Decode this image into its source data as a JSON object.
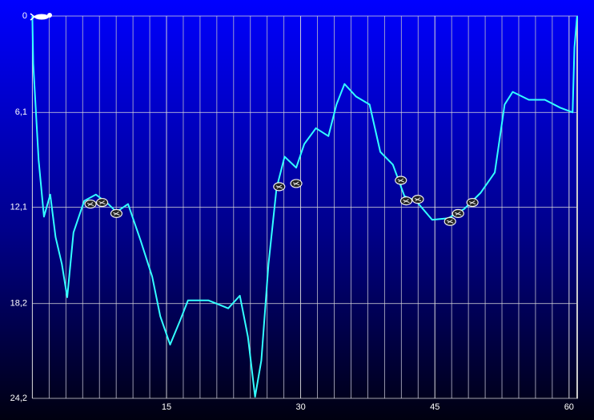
{
  "chart_data": {
    "type": "line",
    "xlim": [
      0,
      61
    ],
    "xticks": [
      15,
      30,
      45,
      60
    ],
    "x_minor_divisions": 8,
    "ylim": [
      0,
      24.2
    ],
    "y_inverted": true,
    "yticks": [
      0,
      {
        "value": 6.1,
        "label": "6,1"
      },
      {
        "value": 12.1,
        "label": "12,1"
      },
      {
        "value": 18.2,
        "label": "18,2"
      },
      {
        "value": 24.2,
        "label": "24,2"
      }
    ],
    "grid": true,
    "series": [
      {
        "color": "#33ffff",
        "x": [
          0,
          0.1,
          0.7,
          1.3,
          2.0,
          2.6,
          3.3,
          3.9,
          4.6,
          5.8,
          7.1,
          8.5,
          9.4,
          10.7,
          12.1,
          13.4,
          14.3,
          15.4,
          16.5,
          17.4,
          19.7,
          21.9,
          23.2,
          24.1,
          24.9,
          25.6,
          26.4,
          27.3,
          28.2,
          29.5,
          30.4,
          31.7,
          33.1,
          34.0,
          34.9,
          36.2,
          37.7,
          38.9,
          40.3,
          41.6,
          42.9,
          44.7,
          46.5,
          48.3,
          50.1,
          51.7,
          52.8,
          53.7,
          55.5,
          57.3,
          59.0,
          60.4,
          60.6,
          60.9
        ],
        "values": [
          0,
          3.0,
          9.1,
          12.7,
          11.3,
          14.0,
          15.7,
          17.8,
          13.7,
          11.7,
          11.3,
          11.9,
          12.4,
          11.9,
          14.2,
          16.5,
          19.0,
          20.8,
          19.3,
          18.0,
          18.0,
          18.5,
          17.7,
          20.3,
          24.1,
          21.8,
          15.7,
          10.9,
          8.9,
          9.6,
          8.1,
          7.1,
          7.6,
          5.6,
          4.3,
          5.1,
          5.6,
          8.6,
          9.4,
          11.4,
          11.7,
          12.9,
          12.8,
          12.2,
          11.2,
          9.9,
          5.6,
          4.8,
          5.3,
          5.3,
          5.8,
          6.1,
          2.0,
          0
        ]
      }
    ],
    "markers": {
      "x": [
        6.5,
        7.8,
        9.4,
        27.6,
        29.5,
        41.2,
        41.8,
        43.1,
        46.7,
        47.6,
        49.2
      ],
      "values": [
        11.9,
        11.8,
        12.5,
        10.8,
        10.6,
        10.4,
        11.7,
        11.6,
        13.0,
        12.5,
        11.8
      ]
    }
  }
}
